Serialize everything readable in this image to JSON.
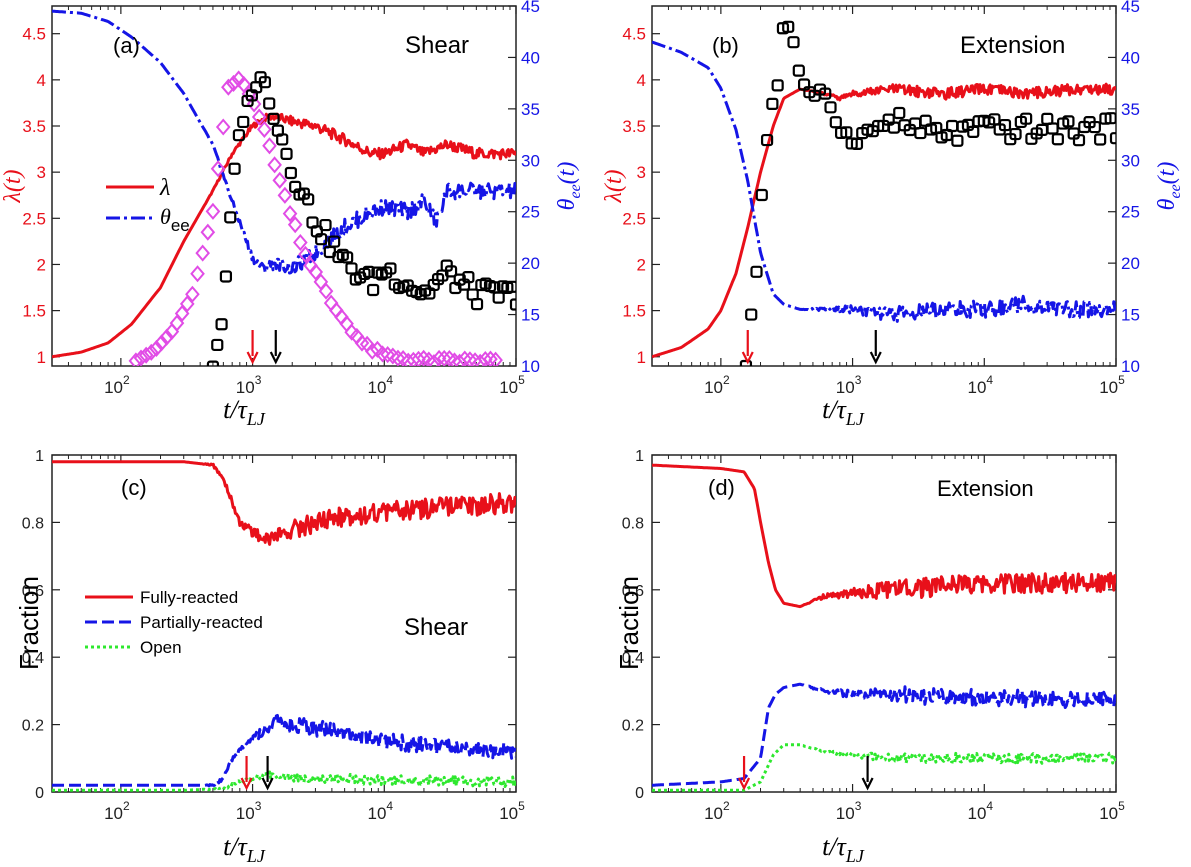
{
  "colors": {
    "red": "#e8101a",
    "blue": "#1515e6",
    "green": "#2ee82e",
    "magenta": "#e14ce6",
    "black": "#000000"
  },
  "tick_labels": {
    "x": [
      "10",
      "10",
      "10",
      "10"
    ],
    "x_exp": [
      "2",
      "3",
      "4",
      "5"
    ],
    "lambda": [
      "1",
      "1.5",
      "2",
      "2.5",
      "3",
      "3.5",
      "4",
      "4.5"
    ],
    "theta": [
      "10",
      "15",
      "20",
      "25",
      "30",
      "35",
      "40",
      "45"
    ],
    "fraction": [
      "0",
      "0.2",
      "0.4",
      "0.6",
      "0.8",
      "1"
    ]
  },
  "xlabel": {
    "main": "t/τ",
    "sub": "LJ"
  },
  "ylabel_lambda": "λ(t)",
  "ylabel_theta": {
    "main": "θ",
    "sub": "ee",
    "tail": "(t)"
  },
  "ylabel_fraction": "Fraction",
  "chart_data": [
    {
      "panel": "(a)",
      "label": "(a)",
      "title": "Shear",
      "type": "line",
      "x_scale": "log",
      "xlim": [
        30,
        100000
      ],
      "ylim_left": [
        0.9,
        4.8
      ],
      "ylim_right": [
        10,
        45
      ],
      "legend": {
        "position": "middle-left",
        "entries": [
          "λ",
          "θ_ee"
        ],
        "lambda_label": "λ",
        "theta_main": "θ",
        "theta_sub": "ee"
      },
      "series": [
        {
          "name": "λ",
          "axis": "left",
          "color": "red",
          "style": "solid",
          "x": [
            30,
            50,
            80,
            120,
            200,
            300,
            500,
            700,
            1000,
            1300,
            1500,
            2000,
            3000,
            5000,
            8000,
            10000,
            15000,
            20000,
            30000,
            50000,
            100000
          ],
          "y": [
            1.0,
            1.05,
            1.15,
            1.35,
            1.75,
            2.25,
            2.8,
            3.2,
            3.5,
            3.6,
            3.6,
            3.55,
            3.5,
            3.35,
            3.2,
            3.2,
            3.3,
            3.2,
            3.3,
            3.2,
            3.2
          ]
        },
        {
          "name": "θ_ee",
          "axis": "right",
          "color": "blue",
          "style": "dash-dot",
          "x": [
            30,
            50,
            80,
            120,
            200,
            300,
            500,
            700,
            1000,
            1200,
            1500,
            2000,
            3000,
            5000,
            8000,
            10000,
            15000,
            20000,
            25000,
            30000,
            50000,
            100000
          ],
          "y": [
            44.5,
            44.3,
            43.5,
            42,
            39.5,
            36.5,
            31.5,
            26,
            20.5,
            19.5,
            20,
            19.5,
            21,
            23.5,
            25,
            25.5,
            25,
            26,
            24,
            27,
            27,
            27
          ]
        },
        {
          "name": "",
          "axis": "right",
          "color": "magenta",
          "style": "diamond-markers",
          "x": [
            130,
            180,
            250,
            350,
            500,
            650,
            800,
            1000,
            1300,
            1700,
            2500,
            4000,
            7000,
            10000,
            20000,
            40000,
            70000
          ],
          "y": [
            10.5,
            11.5,
            13.5,
            17,
            25,
            37,
            38,
            36,
            32,
            27,
            21,
            16,
            12,
            11,
            10.5,
            10.5,
            10.5
          ]
        },
        {
          "name": "",
          "axis": "right",
          "color": "black",
          "style": "square-markers",
          "x": [
            500,
            600,
            700,
            800,
            1000,
            1200,
            1500,
            2000,
            3000,
            5000,
            8000,
            10000,
            20000,
            30000,
            50000,
            80000,
            100000
          ],
          "y": [
            10,
            15,
            27,
            33,
            37,
            38,
            34,
            29,
            24,
            20,
            18,
            19.5,
            17,
            19,
            17,
            17,
            17
          ]
        }
      ],
      "arrows": [
        {
          "x": 1000,
          "color": "red"
        },
        {
          "x": 1500,
          "color": "black"
        }
      ]
    },
    {
      "panel": "(b)",
      "label": "(b)",
      "title": "Extension",
      "type": "line",
      "x_scale": "log",
      "xlim": [
        30,
        100000
      ],
      "ylim_left": [
        0.9,
        4.8
      ],
      "ylim_right": [
        10,
        45
      ],
      "series": [
        {
          "name": "λ",
          "axis": "left",
          "color": "red",
          "style": "solid",
          "x": [
            30,
            50,
            80,
            100,
            130,
            160,
            200,
            250,
            300,
            400,
            600,
            800,
            1000,
            2000,
            5000,
            10000,
            20000,
            50000,
            100000
          ],
          "y": [
            1.0,
            1.1,
            1.3,
            1.5,
            1.9,
            2.4,
            3.0,
            3.5,
            3.8,
            3.9,
            3.85,
            3.8,
            3.85,
            3.9,
            3.85,
            3.9,
            3.85,
            3.9,
            3.9
          ]
        },
        {
          "name": "θ_ee",
          "axis": "right",
          "color": "blue",
          "style": "dash-dot",
          "x": [
            30,
            50,
            80,
            100,
            130,
            160,
            200,
            250,
            300,
            400,
            600,
            1000,
            2000,
            5000,
            10000,
            20000,
            50000,
            100000
          ],
          "y": [
            41.5,
            40.5,
            39,
            37,
            33,
            28,
            21,
            17,
            16,
            15.5,
            15.5,
            15.5,
            15,
            15.5,
            15.5,
            16,
            15.5,
            15.5
          ]
        },
        {
          "name": "",
          "axis": "right",
          "color": "black",
          "style": "square-markers",
          "x": [
            155,
            170,
            190,
            210,
            240,
            280,
            300,
            350,
            400,
            500,
            600,
            800,
            1000,
            1500,
            2000,
            3000,
            5000,
            10000,
            20000,
            50000,
            100000
          ],
          "y": [
            10,
            15,
            20,
            29,
            35,
            38,
            44,
            42,
            38,
            36,
            37,
            33,
            32,
            33,
            34,
            33,
            32.5,
            33,
            33,
            33,
            33
          ]
        }
      ],
      "arrows": [
        {
          "x": 160,
          "color": "red"
        },
        {
          "x": 1500,
          "color": "black"
        }
      ]
    },
    {
      "panel": "(c)",
      "label": "(c)",
      "title": "Shear",
      "type": "line",
      "x_scale": "log",
      "xlim": [
        30,
        100000
      ],
      "ylim": [
        0,
        1
      ],
      "legend": {
        "position": "middle-left",
        "entries": [
          "Fully-reacted",
          "Partially-reacted",
          "Open"
        ]
      },
      "series": [
        {
          "name": "Fully-reacted",
          "color": "red",
          "style": "solid",
          "x": [
            30,
            100,
            300,
            500,
            600,
            700,
            800,
            1000,
            1300,
            1500,
            2000,
            3000,
            5000,
            10000,
            20000,
            50000,
            100000
          ],
          "y": [
            0.98,
            0.98,
            0.98,
            0.97,
            0.93,
            0.86,
            0.8,
            0.77,
            0.75,
            0.76,
            0.78,
            0.8,
            0.82,
            0.83,
            0.84,
            0.85,
            0.86
          ]
        },
        {
          "name": "Partially-reacted",
          "color": "blue",
          "style": "dashed",
          "x": [
            30,
            100,
            300,
            500,
            600,
            700,
            1000,
            1300,
            1500,
            2000,
            3000,
            5000,
            10000,
            20000,
            50000,
            100000
          ],
          "y": [
            0.02,
            0.02,
            0.02,
            0.02,
            0.04,
            0.1,
            0.16,
            0.19,
            0.21,
            0.2,
            0.19,
            0.17,
            0.15,
            0.14,
            0.13,
            0.12
          ]
        },
        {
          "name": "Open",
          "color": "green",
          "style": "dotted",
          "x": [
            30,
            300,
            600,
            800,
            1000,
            1300,
            1500,
            2000,
            5000,
            10000,
            100000
          ],
          "y": [
            0.005,
            0.005,
            0.01,
            0.03,
            0.04,
            0.05,
            0.05,
            0.045,
            0.04,
            0.035,
            0.03
          ]
        }
      ],
      "arrows": [
        {
          "x": 900,
          "color": "red"
        },
        {
          "x": 1300,
          "color": "black"
        }
      ]
    },
    {
      "panel": "(d)",
      "label": "(d)",
      "title": "Extension",
      "type": "line",
      "x_scale": "log",
      "xlim": [
        30,
        100000
      ],
      "ylim": [
        0,
        1
      ],
      "series": [
        {
          "name": "Fully-reacted",
          "color": "red",
          "style": "solid",
          "x": [
            30,
            100,
            150,
            180,
            200,
            230,
            260,
            300,
            400,
            600,
            1000,
            2000,
            5000,
            10000,
            20000,
            50000,
            100000
          ],
          "y": [
            0.97,
            0.96,
            0.95,
            0.9,
            0.8,
            0.68,
            0.6,
            0.56,
            0.55,
            0.58,
            0.59,
            0.6,
            0.61,
            0.62,
            0.62,
            0.62,
            0.62
          ]
        },
        {
          "name": "Partially-reacted",
          "color": "blue",
          "style": "dashed",
          "x": [
            30,
            100,
            150,
            200,
            230,
            260,
            300,
            400,
            600,
            1000,
            2000,
            5000,
            10000,
            100000
          ],
          "y": [
            0.02,
            0.03,
            0.04,
            0.1,
            0.25,
            0.29,
            0.31,
            0.32,
            0.3,
            0.29,
            0.29,
            0.28,
            0.28,
            0.27
          ]
        },
        {
          "name": "Open",
          "color": "green",
          "style": "dotted",
          "x": [
            30,
            150,
            200,
            250,
            300,
            400,
            600,
            1000,
            2000,
            5000,
            10000,
            100000
          ],
          "y": [
            0.005,
            0.005,
            0.03,
            0.11,
            0.14,
            0.14,
            0.12,
            0.11,
            0.1,
            0.1,
            0.1,
            0.1
          ]
        }
      ],
      "arrows": [
        {
          "x": 150,
          "color": "red"
        },
        {
          "x": 1300,
          "color": "black"
        }
      ]
    }
  ]
}
